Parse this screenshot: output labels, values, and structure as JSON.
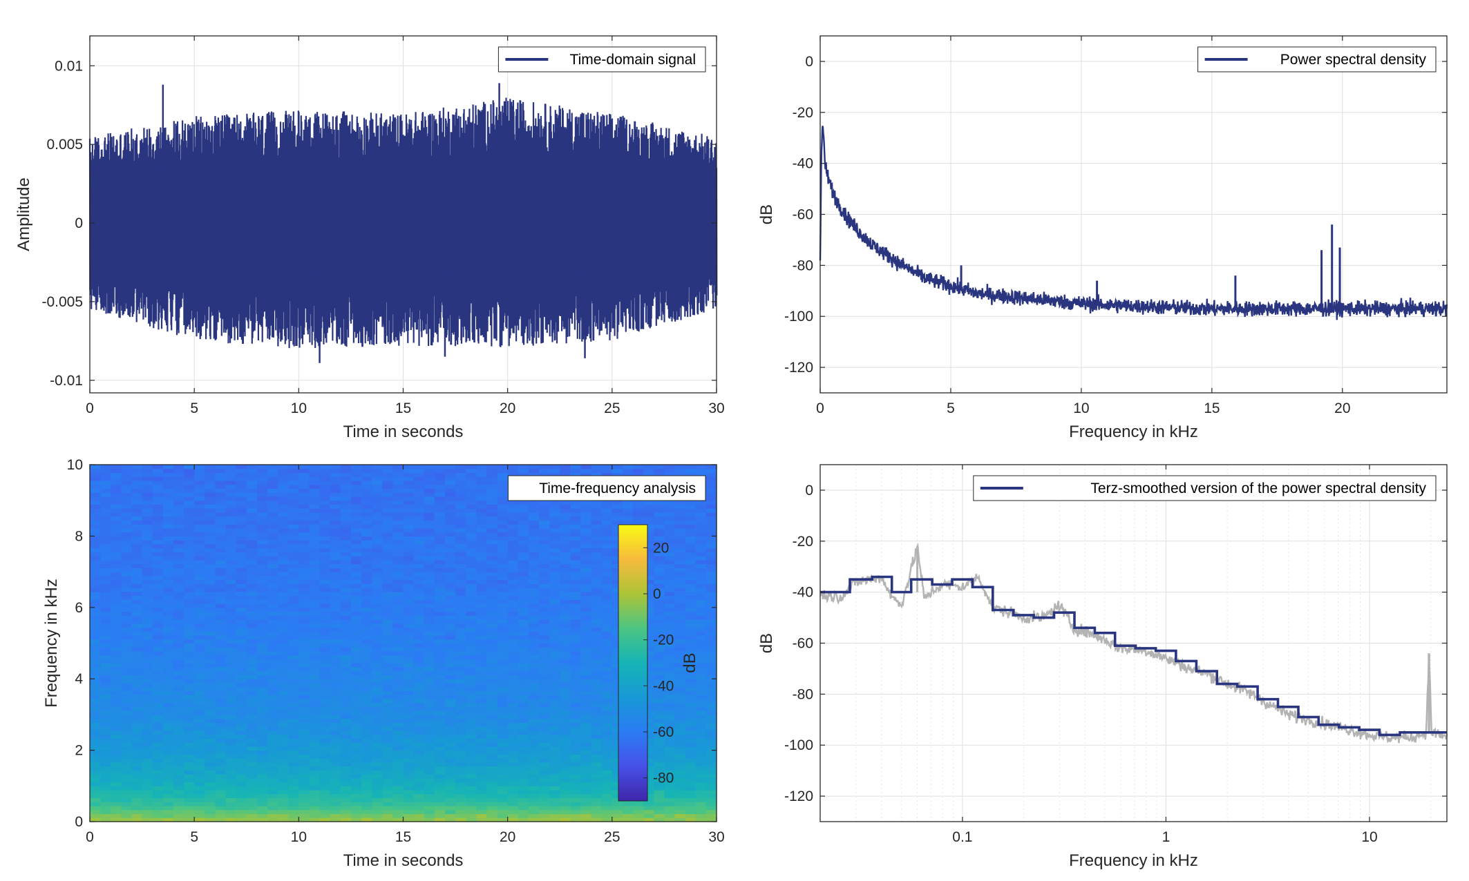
{
  "figure": {
    "background": "#ffffff",
    "series_color": "#2a3580",
    "raw_color": "#b3b3b3"
  },
  "chart_data": [
    {
      "id": "time",
      "type": "line",
      "legend": "Time-domain signal",
      "legend_placement": "top-right",
      "xlabel": "Time in seconds",
      "ylabel": "Amplitude",
      "xlim": [
        0,
        30
      ],
      "ylim": [
        -0.0108,
        0.0119
      ],
      "xticks": [
        0,
        5,
        10,
        15,
        20,
        25,
        30
      ],
      "xtick_labels": [
        "0",
        "5",
        "10",
        "15",
        "20",
        "25",
        "30"
      ],
      "yticks": [
        -0.01,
        -0.005,
        0,
        0.005,
        0.01
      ],
      "ytick_labels": [
        "-0.01",
        "-0.005",
        "0",
        "0.005",
        "0.01"
      ],
      "grid": true,
      "peaks": [
        {
          "x": 3.5,
          "y": 0.0088
        },
        {
          "x": 19.6,
          "y": 0.0089
        },
        {
          "x": 11.0,
          "y": -0.0089
        },
        {
          "x": 23.7,
          "y": -0.0086
        },
        {
          "x": 17.0,
          "y": -0.0085
        }
      ],
      "envelope": [
        {
          "x": 0,
          "max": 0.0055,
          "min": -0.0055
        },
        {
          "x": 5,
          "max": 0.0068,
          "min": -0.0075
        },
        {
          "x": 10,
          "max": 0.0072,
          "min": -0.008
        },
        {
          "x": 15,
          "max": 0.007,
          "min": -0.0078
        },
        {
          "x": 20,
          "max": 0.008,
          "min": -0.0079
        },
        {
          "x": 25,
          "max": 0.007,
          "min": -0.0075
        },
        {
          "x": 30,
          "max": 0.0055,
          "min": -0.0055
        }
      ]
    },
    {
      "id": "psd",
      "type": "line",
      "legend": "Power spectral density",
      "legend_placement": "top-right",
      "xlabel": "Frequency in kHz",
      "ylabel": "dB",
      "xlim": [
        0,
        24
      ],
      "ylim": [
        -130,
        10
      ],
      "xticks": [
        0,
        5,
        10,
        15,
        20
      ],
      "xtick_labels": [
        "0",
        "5",
        "10",
        "15",
        "20"
      ],
      "yticks": [
        0,
        -20,
        -40,
        -60,
        -80,
        -100,
        -120
      ],
      "ytick_labels": [
        "0",
        "-20",
        "-40",
        "-60",
        "-80",
        "-100",
        "-120"
      ],
      "grid": true,
      "trend": [
        {
          "x": 0.0,
          "y": -78
        },
        {
          "x": 0.05,
          "y": -35
        },
        {
          "x": 0.1,
          "y": -24
        },
        {
          "x": 0.2,
          "y": -42
        },
        {
          "x": 0.5,
          "y": -52
        },
        {
          "x": 1,
          "y": -61
        },
        {
          "x": 1.5,
          "y": -67
        },
        {
          "x": 2,
          "y": -72
        },
        {
          "x": 3,
          "y": -79
        },
        {
          "x": 4,
          "y": -85
        },
        {
          "x": 5,
          "y": -88
        },
        {
          "x": 6,
          "y": -91
        },
        {
          "x": 8,
          "y": -93
        },
        {
          "x": 10,
          "y": -95
        },
        {
          "x": 12,
          "y": -96
        },
        {
          "x": 15,
          "y": -97
        },
        {
          "x": 18,
          "y": -97
        },
        {
          "x": 20,
          "y": -97
        },
        {
          "x": 24,
          "y": -97
        }
      ],
      "spikes": [
        {
          "x": 5.4,
          "y": -80
        },
        {
          "x": 10.6,
          "y": -86
        },
        {
          "x": 15.9,
          "y": -84
        },
        {
          "x": 19.2,
          "y": -74
        },
        {
          "x": 19.6,
          "y": -64
        },
        {
          "x": 19.9,
          "y": -73
        }
      ]
    },
    {
      "id": "spectrogram",
      "type": "heatmap",
      "legend": "Time-frequency analysis",
      "legend_placement": "top-right",
      "xlabel": "Time in seconds",
      "ylabel": "Frequency in kHz",
      "xlim": [
        0,
        30
      ],
      "ylim": [
        0,
        10
      ],
      "xticks": [
        0,
        5,
        10,
        15,
        20,
        25,
        30
      ],
      "xtick_labels": [
        "0",
        "5",
        "10",
        "15",
        "20",
        "25",
        "30"
      ],
      "yticks": [
        0,
        2,
        4,
        6,
        8,
        10
      ],
      "ytick_labels": [
        "0",
        "2",
        "4",
        "6",
        "8",
        "10"
      ],
      "colorbar": {
        "label": "dB",
        "clim": [
          -90,
          30
        ],
        "ticks": [
          20,
          0,
          -20,
          -40,
          -60,
          -80
        ],
        "tick_labels": [
          "20",
          "0",
          "-20",
          "-40",
          "-60",
          "-80"
        ],
        "colormap": "parula"
      },
      "level_profile": [
        {
          "f": 0.0,
          "db": -2
        },
        {
          "f": 0.15,
          "db": -8
        },
        {
          "f": 0.5,
          "db": -22
        },
        {
          "f": 1.0,
          "db": -33
        },
        {
          "f": 2.0,
          "db": -45
        },
        {
          "f": 3.0,
          "db": -52
        },
        {
          "f": 5.0,
          "db": -58
        },
        {
          "f": 7.0,
          "db": -62
        },
        {
          "f": 10.0,
          "db": -64
        }
      ]
    },
    {
      "id": "terz",
      "type": "line",
      "legend": "Terz-smoothed version of the power spectral density",
      "legend_placement": "top-right",
      "xlabel": "Frequency in kHz",
      "ylabel": "dB",
      "xscale": "log",
      "xlim": [
        0.02,
        24
      ],
      "ylim": [
        -130,
        10
      ],
      "xticks": [
        0.1,
        1,
        10
      ],
      "xtick_labels": [
        "0.1",
        "1",
        "10"
      ],
      "yticks": [
        0,
        -20,
        -40,
        -60,
        -80,
        -100,
        -120
      ],
      "ytick_labels": [
        "0",
        "-20",
        "-40",
        "-60",
        "-80",
        "-100",
        "-120"
      ],
      "grid": true,
      "series": [
        {
          "role": "raw",
          "points": [
            {
              "x": 0.02,
              "y": -41
            },
            {
              "x": 0.025,
              "y": -42
            },
            {
              "x": 0.03,
              "y": -36
            },
            {
              "x": 0.035,
              "y": -35
            },
            {
              "x": 0.04,
              "y": -34
            },
            {
              "x": 0.045,
              "y": -42
            },
            {
              "x": 0.05,
              "y": -45
            },
            {
              "x": 0.06,
              "y": -22
            },
            {
              "x": 0.065,
              "y": -43
            },
            {
              "x": 0.07,
              "y": -40
            },
            {
              "x": 0.08,
              "y": -37
            },
            {
              "x": 0.1,
              "y": -38
            },
            {
              "x": 0.12,
              "y": -34
            },
            {
              "x": 0.14,
              "y": -46
            },
            {
              "x": 0.2,
              "y": -50
            },
            {
              "x": 0.25,
              "y": -50
            },
            {
              "x": 0.3,
              "y": -45
            },
            {
              "x": 0.35,
              "y": -54
            },
            {
              "x": 0.45,
              "y": -57
            },
            {
              "x": 0.6,
              "y": -62
            },
            {
              "x": 0.8,
              "y": -63
            },
            {
              "x": 1.0,
              "y": -66
            },
            {
              "x": 1.3,
              "y": -70
            },
            {
              "x": 1.6,
              "y": -72
            },
            {
              "x": 2.0,
              "y": -76
            },
            {
              "x": 2.5,
              "y": -79
            },
            {
              "x": 3.2,
              "y": -84
            },
            {
              "x": 4.0,
              "y": -88
            },
            {
              "x": 5.0,
              "y": -90
            },
            {
              "x": 6.3,
              "y": -92
            },
            {
              "x": 8.0,
              "y": -94
            },
            {
              "x": 10.0,
              "y": -96
            },
            {
              "x": 12.5,
              "y": -97
            },
            {
              "x": 16.0,
              "y": -97
            },
            {
              "x": 19.0,
              "y": -95
            },
            {
              "x": 19.6,
              "y": -64
            },
            {
              "x": 20.2,
              "y": -95
            },
            {
              "x": 24.0,
              "y": -97
            }
          ]
        },
        {
          "role": "smoothed",
          "steps": [
            {
              "x0": 0.02,
              "x1": 0.028,
              "y": -40
            },
            {
              "x0": 0.028,
              "x1": 0.036,
              "y": -35
            },
            {
              "x0": 0.036,
              "x1": 0.045,
              "y": -34
            },
            {
              "x0": 0.045,
              "x1": 0.056,
              "y": -40
            },
            {
              "x0": 0.056,
              "x1": 0.071,
              "y": -35
            },
            {
              "x0": 0.071,
              "x1": 0.089,
              "y": -37
            },
            {
              "x0": 0.089,
              "x1": 0.112,
              "y": -35
            },
            {
              "x0": 0.112,
              "x1": 0.141,
              "y": -38
            },
            {
              "x0": 0.141,
              "x1": 0.178,
              "y": -47
            },
            {
              "x0": 0.178,
              "x1": 0.224,
              "y": -49
            },
            {
              "x0": 0.224,
              "x1": 0.282,
              "y": -50
            },
            {
              "x0": 0.282,
              "x1": 0.355,
              "y": -48
            },
            {
              "x0": 0.355,
              "x1": 0.447,
              "y": -54
            },
            {
              "x0": 0.447,
              "x1": 0.562,
              "y": -56
            },
            {
              "x0": 0.562,
              "x1": 0.708,
              "y": -61
            },
            {
              "x0": 0.708,
              "x1": 0.891,
              "y": -62
            },
            {
              "x0": 0.891,
              "x1": 1.12,
              "y": -63
            },
            {
              "x0": 1.12,
              "x1": 1.41,
              "y": -67
            },
            {
              "x0": 1.41,
              "x1": 1.78,
              "y": -71
            },
            {
              "x0": 1.78,
              "x1": 2.24,
              "y": -76
            },
            {
              "x0": 2.24,
              "x1": 2.82,
              "y": -77
            },
            {
              "x0": 2.82,
              "x1": 3.55,
              "y": -82
            },
            {
              "x0": 3.55,
              "x1": 4.47,
              "y": -85
            },
            {
              "x0": 4.47,
              "x1": 5.62,
              "y": -89
            },
            {
              "x0": 5.62,
              "x1": 7.08,
              "y": -92
            },
            {
              "x0": 7.08,
              "x1": 8.91,
              "y": -93
            },
            {
              "x0": 8.91,
              "x1": 11.2,
              "y": -94
            },
            {
              "x0": 11.2,
              "x1": 14.1,
              "y": -96
            },
            {
              "x0": 14.1,
              "x1": 17.8,
              "y": -95
            },
            {
              "x0": 17.8,
              "x1": 24.0,
              "y": -95
            }
          ]
        }
      ]
    }
  ]
}
